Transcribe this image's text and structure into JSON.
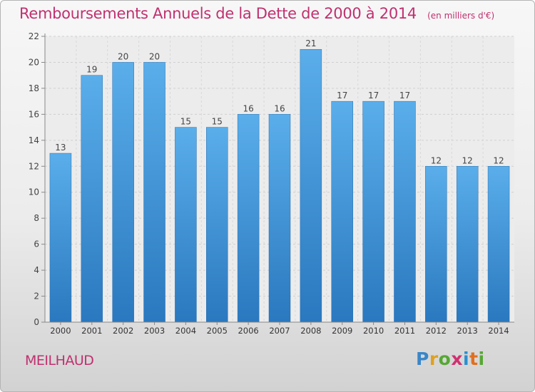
{
  "chart_data": {
    "type": "bar",
    "title": "Remboursements Annuels de la Dette de 2000 à 2014",
    "unit": "(en milliers d'€)",
    "categories": [
      "2000",
      "2001",
      "2002",
      "2003",
      "2004",
      "2005",
      "2006",
      "2007",
      "2008",
      "2009",
      "2010",
      "2011",
      "2012",
      "2013",
      "2014"
    ],
    "values": [
      13,
      19,
      20,
      20,
      15,
      15,
      16,
      16,
      21,
      17,
      17,
      17,
      12,
      12,
      12
    ],
    "ylim": [
      0,
      22
    ],
    "yticks": [
      0,
      2,
      4,
      6,
      8,
      10,
      12,
      14,
      16,
      18,
      20,
      22
    ],
    "grid": true,
    "data_labels": true,
    "bar_color": "#4fa3e3"
  },
  "place_name": "MEILHAUD",
  "logo": {
    "letters": [
      "P",
      "r",
      "o",
      "x",
      "i",
      "t",
      "i"
    ],
    "colors": [
      "#3a86c8",
      "#e0a020",
      "#56a834",
      "#d03070",
      "#2a8fd0",
      "#e07020",
      "#56a834"
    ]
  }
}
